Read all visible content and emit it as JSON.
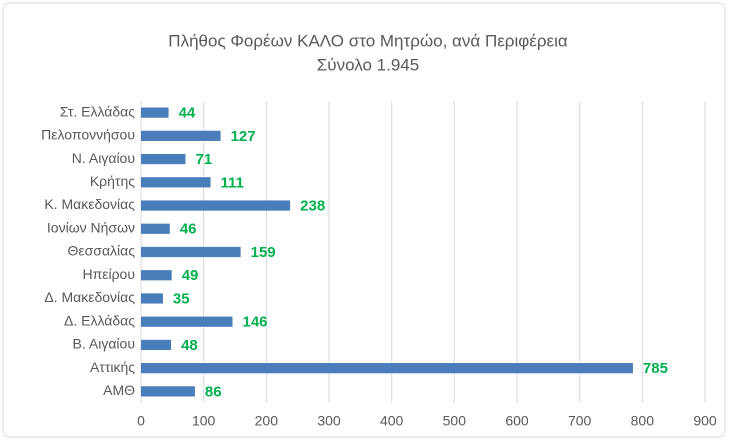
{
  "chart_data": {
    "type": "bar",
    "orientation": "horizontal",
    "title": "Πλήθος Φορέων ΚΑΛΟ στο Μητρώο, ανά Περιφέρεια",
    "subtitle": "Σύνολο 1.945",
    "categories": [
      "Στ. Ελλάδας",
      "Πελοποννήσου",
      "Ν. Αιγαίου",
      "Κρήτης",
      "Κ. Μακεδονίας",
      "Ιονίων Νήσων",
      "Θεσσαλίας",
      "Ηπείρου",
      "Δ. Μακεδονίας",
      "Δ. Ελλάδας",
      "Β. Αιγαίου",
      "Αττικής",
      "ΑΜΘ"
    ],
    "values": [
      44,
      127,
      71,
      111,
      238,
      46,
      159,
      49,
      35,
      146,
      48,
      785,
      86
    ],
    "color": "#4a7ebb",
    "label_color": "#00b050",
    "xlim": [
      0,
      900
    ],
    "xticks": [
      0,
      100,
      200,
      300,
      400,
      500,
      600,
      700,
      800,
      900
    ],
    "grid": true
  }
}
